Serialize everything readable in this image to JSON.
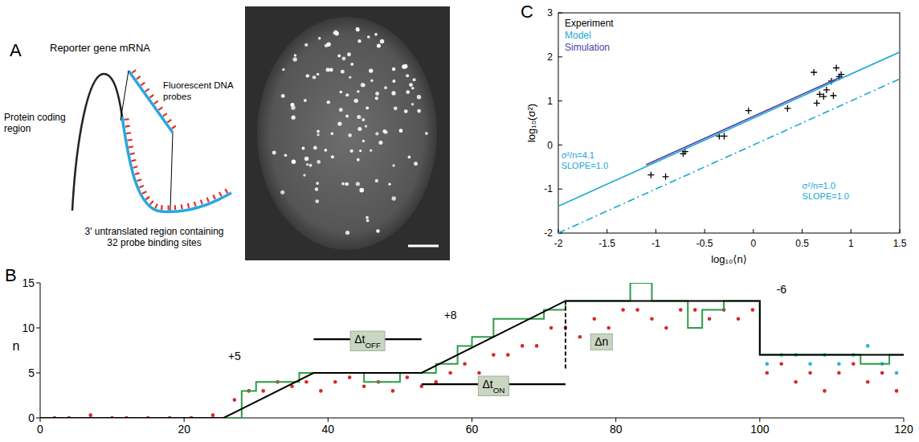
{
  "diagram": {
    "panel_label": "A",
    "title": "Reporter gene mRNA",
    "coding_label": [
      "Protein coding",
      "region"
    ],
    "probe_label": [
      "Fluorescent DNA",
      "probes"
    ],
    "utr_label": [
      "3' untranslated region containing",
      "32 probe binding sites"
    ]
  },
  "chart_data": [
    {
      "panel_label": "B",
      "type": "line",
      "y_label": "n",
      "xlim": [
        0,
        120
      ],
      "xticks": [
        0,
        20,
        40,
        60,
        80,
        100,
        120
      ],
      "ylim": [
        0,
        15
      ],
      "yticks": [
        0,
        5,
        10,
        15
      ],
      "series": [
        {
          "type": "scatter",
          "marker": "dot",
          "color": "#d42a2a",
          "x": [
            2,
            4,
            7,
            10,
            12,
            15,
            18,
            21,
            24,
            27,
            29,
            31,
            33,
            35,
            37,
            39,
            41,
            43,
            45,
            47,
            49,
            51,
            53,
            55,
            57,
            59,
            61,
            63,
            65,
            67,
            69,
            71,
            73,
            75,
            77,
            79,
            81,
            83,
            85,
            87,
            89,
            91,
            93,
            95,
            97,
            99,
            101,
            103,
            105,
            107,
            109,
            111,
            113,
            115,
            117,
            119
          ],
          "values": [
            0,
            0,
            0.3,
            0,
            0,
            0,
            0,
            0,
            0.3,
            2,
            3,
            3,
            4,
            3.5,
            4,
            3,
            4,
            4.5,
            3.5,
            4,
            3,
            4.5,
            3.5,
            4,
            5,
            6,
            5,
            7,
            7,
            8,
            8,
            10,
            10,
            9,
            11,
            10,
            12,
            12,
            11,
            10,
            12,
            12,
            11,
            12,
            11,
            12,
            5,
            6,
            4,
            5,
            3,
            5,
            6,
            4,
            5,
            3
          ]
        },
        {
          "type": "scatter",
          "marker": "dot",
          "color": "#27b5d0",
          "x": [
            101,
            103,
            105,
            107,
            109,
            111,
            113,
            115,
            117,
            119
          ],
          "values": [
            6,
            7,
            7,
            6,
            7,
            6,
            7,
            8,
            6,
            5
          ]
        },
        {
          "type": "line",
          "line_style": "step",
          "color": "#2e9b45",
          "x": [
            0,
            5,
            10,
            15,
            20,
            25,
            28,
            30,
            33,
            36,
            40,
            45,
            50,
            53,
            55,
            58,
            60,
            63,
            66,
            70,
            73,
            76,
            79,
            82,
            85,
            88,
            90,
            92,
            95,
            98,
            100,
            103,
            106,
            110,
            114,
            118,
            120
          ],
          "values": [
            0,
            0,
            0,
            0,
            0,
            0,
            3,
            4,
            4,
            5,
            5,
            4,
            5,
            5,
            6,
            8,
            9,
            11,
            11,
            12,
            13,
            13,
            13,
            15,
            13,
            13,
            10,
            12,
            13,
            13,
            7,
            7,
            7,
            7,
            6,
            7,
            7
          ]
        },
        {
          "type": "line",
          "color": "#000000",
          "x": [
            0,
            25.5,
            38,
            53,
            73,
            100,
            100,
            120
          ],
          "values": [
            0,
            0,
            5,
            5,
            13,
            13,
            7,
            7
          ]
        }
      ],
      "annotations": [
        {
          "text": "+5",
          "x": 27,
          "y": 6.4
        },
        {
          "text": "+8",
          "x": 57,
          "y": 11
        },
        {
          "text": "-6",
          "x": 103,
          "y": 13.8
        },
        {
          "text": "Δt",
          "sub": "OFF",
          "x": 45.5,
          "y": 8.3,
          "span": [
            38,
            53
          ]
        },
        {
          "text": "Δt",
          "sub": "ON",
          "x": 63,
          "y": 3.3,
          "span": [
            53,
            73
          ]
        },
        {
          "text": "Δn",
          "x": 78,
          "y": 8,
          "vline": {
            "x": 73,
            "y0": 5.5,
            "y1": 13
          }
        }
      ]
    },
    {
      "panel_label": "C",
      "type": "scatter",
      "x_label": "log₁₀⟨n⟩",
      "y_label": "log₁₀(σ²)",
      "xlim": [
        -2,
        1.5
      ],
      "xticks": [
        -2,
        -1.5,
        -1,
        -0.5,
        0,
        0.5,
        1,
        1.5
      ],
      "ylim": [
        -2,
        3
      ],
      "yticks": [
        -2,
        -1,
        0,
        1,
        2,
        3
      ],
      "legend": "upper left",
      "series": [
        {
          "name": "Experiment",
          "type": "scatter",
          "marker": "plus",
          "color": "#000000",
          "x": [
            -1.05,
            -0.9,
            -0.72,
            -0.7,
            -0.35,
            -0.3,
            -0.05,
            0.35,
            0.62,
            0.65,
            0.68,
            0.72,
            0.75,
            0.8,
            0.82,
            0.85,
            0.88,
            0.9
          ],
          "values": [
            -0.68,
            -0.72,
            -0.2,
            -0.15,
            0.2,
            0.2,
            0.78,
            0.83,
            1.65,
            0.95,
            1.15,
            1.1,
            1.25,
            1.45,
            1.12,
            1.75,
            1.55,
            1.6
          ]
        },
        {
          "name": "Model",
          "type": "line",
          "color": "#1aa7d4",
          "x": [
            -2,
            1.5
          ],
          "values": [
            -1.39,
            2.11
          ]
        },
        {
          "name": "Simulation",
          "type": "line",
          "color": "#4a3fa8",
          "x": [
            -1.1,
            0.9
          ],
          "values": [
            -0.45,
            1.55
          ]
        },
        {
          "type": "line",
          "line_style": "dashdot",
          "color": "#1aa7d4",
          "x": [
            -2,
            1.5
          ],
          "values": [
            -2,
            1.5
          ]
        }
      ],
      "annotations": [
        {
          "text": [
            "σ²/n=4.1",
            "SLOPE=1.0"
          ],
          "x": -1.97,
          "y": -0.3,
          "color": "#1aa7d4"
        },
        {
          "text": [
            "σ²/n=1.0",
            "SLOPE=1.0"
          ],
          "x": 0.5,
          "y": -1.0,
          "color": "#1aa7d4"
        }
      ]
    }
  ]
}
